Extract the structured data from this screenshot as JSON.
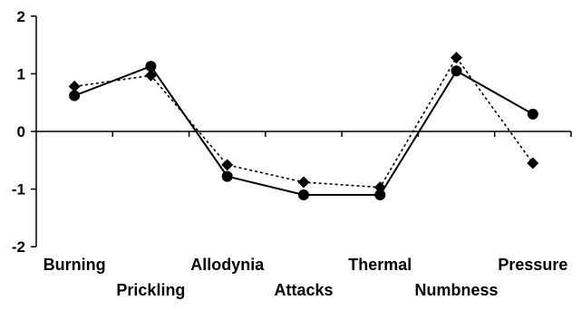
{
  "chart_data": {
    "type": "line",
    "title": "",
    "xlabel": "",
    "ylabel": "",
    "categories": [
      "Burning",
      "Prickling",
      "Allodynia",
      "Attacks",
      "Thermal",
      "Numbness",
      "Pressure"
    ],
    "y_ticks": [
      2,
      1,
      0,
      -1,
      -2
    ],
    "ylim": [
      -2,
      2
    ],
    "grid": false,
    "legend": "none",
    "series": [
      {
        "values": [
          0.62,
          1.13,
          -0.78,
          -1.1,
          -1.1,
          1.05,
          0.3
        ],
        "line_style": "solid",
        "marker": "circle",
        "color": "#000000"
      },
      {
        "values": [
          0.78,
          0.97,
          -0.58,
          -0.88,
          -0.97,
          1.28,
          -0.55
        ],
        "line_style": "dotted",
        "marker": "diamond",
        "color": "#000000"
      }
    ]
  }
}
